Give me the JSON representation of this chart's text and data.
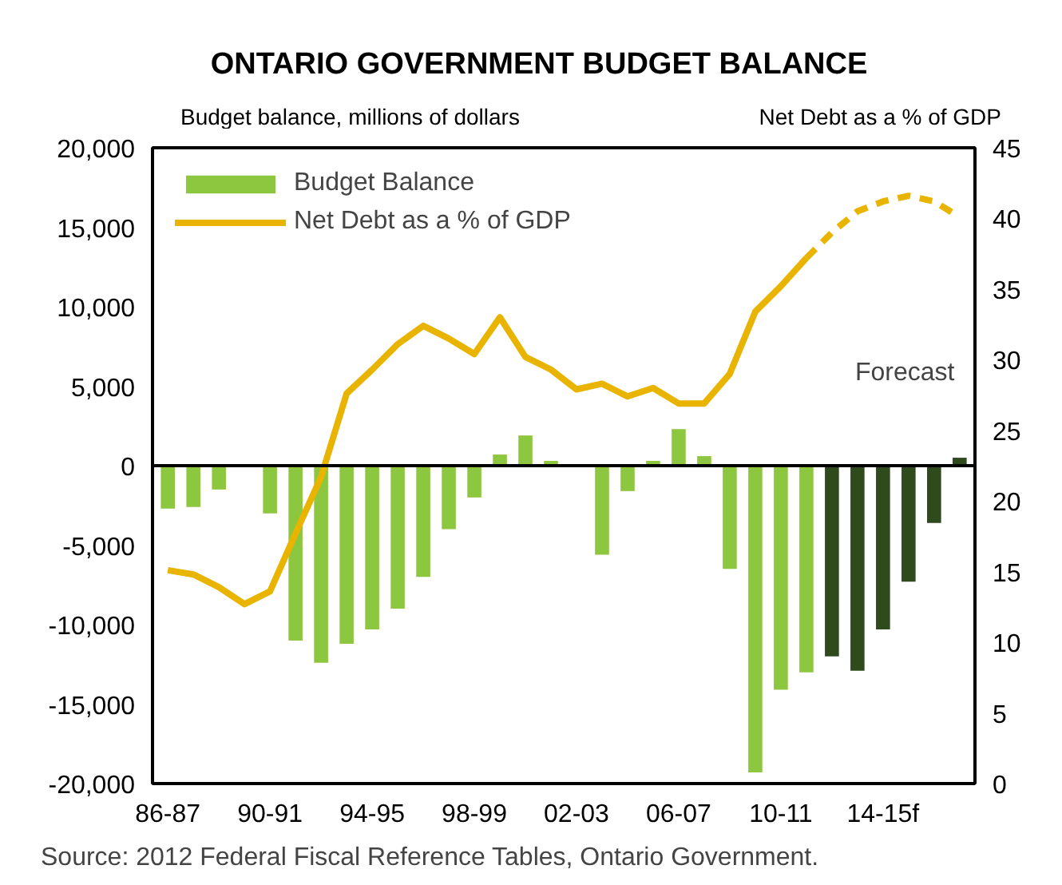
{
  "chart_data": {
    "type": "bar",
    "title": "ONTARIO GOVERNMENT BUDGET BALANCE",
    "ylabel": "Budget balance, millions of dollars",
    "y2label": "Net Debt as a % of GDP",
    "categories": [
      "86-87",
      null,
      null,
      null,
      "90-91",
      null,
      null,
      null,
      "94-95",
      null,
      null,
      null,
      "98-99",
      null,
      null,
      null,
      "02-03",
      null,
      null,
      null,
      "06-07",
      null,
      null,
      null,
      "10-11",
      null,
      null,
      null,
      "14-15f",
      null,
      null,
      null
    ],
    "series": [
      {
        "name": "Budget Balance",
        "color": "#8dc63f",
        "colors": [
          "#8dc63f",
          "#8dc63f",
          "#8dc63f",
          "#8dc63f",
          "#8dc63f",
          "#8dc63f",
          "#8dc63f",
          "#8dc63f",
          "#8dc63f",
          "#8dc63f",
          "#8dc63f",
          "#8dc63f",
          "#8dc63f",
          "#8dc63f",
          "#8dc63f",
          "#8dc63f",
          "#8dc63f",
          "#8dc63f",
          "#8dc63f",
          "#8dc63f",
          "#8dc63f",
          "#8dc63f",
          "#8dc63f",
          "#8dc63f",
          "#8dc63f",
          "#8dc63f",
          "#2f4a1c",
          "#2f4a1c",
          "#2f4a1c",
          "#2f4a1c",
          "#2f4a1c",
          "#2f4a1c"
        ],
        "values": [
          -2700,
          -2600,
          -1500,
          0,
          -3000,
          -11000,
          -12400,
          -11200,
          -10300,
          -9000,
          -7000,
          -4000,
          -2000,
          700,
          1900,
          300,
          null,
          -5600,
          -1600,
          300,
          2300,
          600,
          -6500,
          -19300,
          -14100,
          -13000,
          -12000,
          -12900,
          -10300,
          -7300,
          -3600,
          500
        ]
      },
      {
        "name": "Net Debt as a % of GDP",
        "type": "line",
        "axis": "y2",
        "color": "#e8b400",
        "line_style": "solid",
        "values": [
          15.1,
          14.8,
          13.9,
          12.7,
          13.6,
          17.7,
          21.7,
          27.6,
          29.3,
          31.1,
          32.4,
          31.5,
          30.4,
          33.0,
          30.2,
          29.3,
          27.9,
          28.3,
          27.4,
          28.0,
          26.9,
          26.9,
          29.0,
          33.4,
          35.2,
          37.2,
          null,
          null,
          null,
          null,
          null,
          null
        ]
      },
      {
        "type": "line",
        "axis": "y2",
        "color": "#e8b400",
        "line_style": "dashed",
        "values": [
          null,
          null,
          null,
          null,
          null,
          null,
          null,
          null,
          null,
          null,
          null,
          null,
          null,
          null,
          null,
          null,
          null,
          null,
          null,
          null,
          null,
          null,
          null,
          null,
          null,
          37.2,
          39.0,
          40.5,
          41.2,
          41.6,
          41.2,
          40.1
        ]
      }
    ],
    "ylim": [
      -20000,
      20000
    ],
    "yticks": [
      {
        "value": -20000,
        "label": "-20,000"
      },
      {
        "value": -15000,
        "label": "-15,000"
      },
      {
        "value": -10000,
        "label": "-10,000"
      },
      {
        "value": -5000,
        "label": "-5,000"
      },
      0,
      {
        "value": 5000,
        "label": "5,000"
      },
      {
        "value": 10000,
        "label": "10,000"
      },
      {
        "value": 15000,
        "label": "15,000"
      },
      {
        "value": 20000,
        "label": "20,000"
      }
    ],
    "y2lim": [
      0,
      45
    ],
    "y2ticks": [
      0,
      5,
      10,
      15,
      20,
      25,
      30,
      35,
      40,
      45
    ],
    "ref_lines": [
      {
        "axis": "y",
        "value": 0,
        "color": "#000000"
      }
    ],
    "annotations": [
      "Forecast",
      "Source: 2012 Federal Fiscal Reference Tables, Ontario Government."
    ],
    "legend": "top left",
    "grid": false
  }
}
